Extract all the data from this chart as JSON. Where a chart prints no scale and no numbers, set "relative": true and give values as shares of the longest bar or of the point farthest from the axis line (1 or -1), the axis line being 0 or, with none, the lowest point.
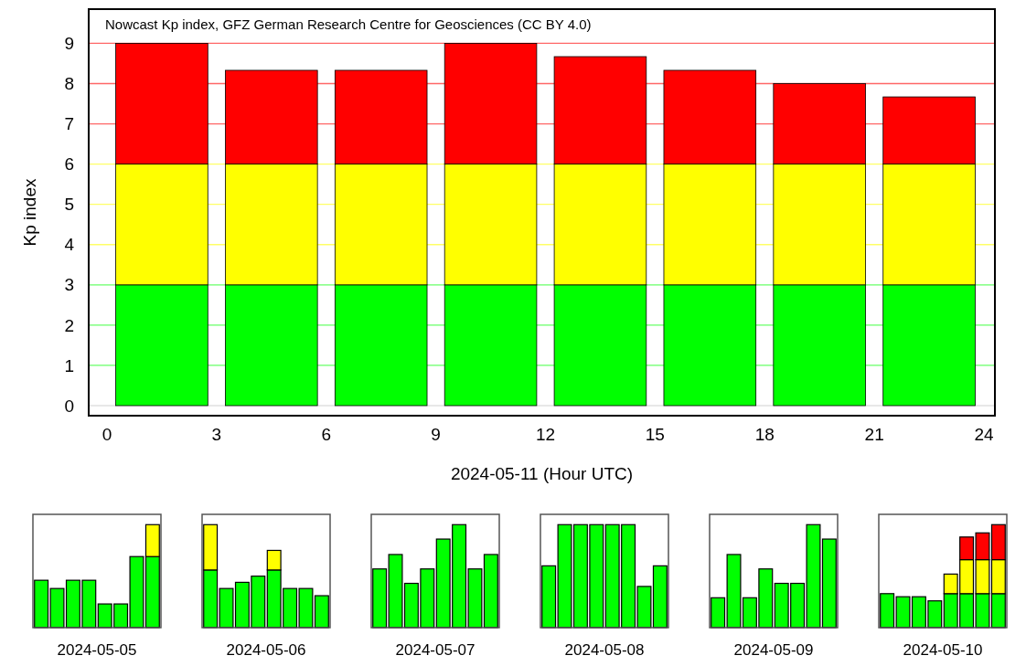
{
  "chart_data": [
    {
      "type": "bar",
      "stacked": true,
      "annotations": [
        "Nowcast Kp index, GFZ German Research Centre for Geosciences (CC BY 4.0)"
      ],
      "xlabel": "2024-05-11 (Hour UTC)",
      "ylabel": "Kp index",
      "x": [
        1.5,
        4.5,
        7.5,
        10.5,
        13.5,
        16.5,
        19.5,
        22.5
      ],
      "xlim": [
        -0.5,
        24.3
      ],
      "xticks": [
        0,
        3,
        6,
        9,
        12,
        15,
        18,
        21,
        24
      ],
      "ylim": [
        -0.25,
        9.85
      ],
      "yticks": [
        0,
        1,
        2,
        3,
        4,
        5,
        6,
        7,
        8,
        9
      ],
      "grid": "y",
      "series": [
        {
          "color": "#00ff00",
          "values": [
            3,
            3,
            3,
            3,
            3,
            3,
            3,
            3
          ]
        },
        {
          "color": "#ffff00",
          "values": [
            3,
            3,
            3,
            3,
            3,
            3,
            3,
            3
          ]
        },
        {
          "color": "#ff0000",
          "values": [
            3,
            2.33,
            2.33,
            3,
            2.67,
            2.33,
            2,
            1.67
          ]
        }
      ]
    },
    {
      "type": "bar",
      "stacked": true,
      "relative": true,
      "xlabel": "2024-05-05",
      "categories": [
        null,
        null,
        null,
        null,
        null,
        null,
        null,
        null
      ],
      "series": [
        {
          "color": "#00ff00",
          "values": [
            0.46,
            0.38,
            0.46,
            0.46,
            0.23,
            0.23,
            0.69,
            0.69
          ]
        },
        {
          "color": "#ffff00",
          "values": [
            null,
            null,
            null,
            null,
            null,
            null,
            null,
            0.31
          ]
        }
      ]
    },
    {
      "type": "bar",
      "stacked": true,
      "relative": true,
      "xlabel": "2024-05-06",
      "categories": [
        null,
        null,
        null,
        null,
        null,
        null,
        null,
        null
      ],
      "series": [
        {
          "color": "#00ff00",
          "values": [
            0.56,
            0.38,
            0.44,
            0.5,
            0.56,
            0.38,
            0.38,
            0.31
          ]
        },
        {
          "color": "#ffff00",
          "values": [
            0.44,
            null,
            null,
            null,
            0.19,
            null,
            null,
            null
          ]
        }
      ]
    },
    {
      "type": "bar",
      "stacked": true,
      "relative": true,
      "xlabel": "2024-05-07",
      "categories": [
        null,
        null,
        null,
        null,
        null,
        null,
        null,
        null
      ],
      "series": [
        {
          "color": "#00ff00",
          "values": [
            0.57,
            0.71,
            0.43,
            0.57,
            0.86,
            1,
            0.57,
            0.71
          ]
        }
      ]
    },
    {
      "type": "bar",
      "stacked": true,
      "relative": true,
      "xlabel": "2024-05-08",
      "categories": [
        null,
        null,
        null,
        null,
        null,
        null,
        null,
        null
      ],
      "series": [
        {
          "color": "#00ff00",
          "values": [
            0.6,
            1,
            1,
            1,
            1,
            1,
            0.4,
            0.6
          ]
        }
      ]
    },
    {
      "type": "bar",
      "stacked": true,
      "relative": true,
      "xlabel": "2024-05-09",
      "categories": [
        null,
        null,
        null,
        null,
        null,
        null,
        null,
        null
      ],
      "series": [
        {
          "color": "#00ff00",
          "values": [
            0.29,
            0.71,
            0.29,
            0.57,
            0.43,
            0.43,
            1,
            0.86
          ]
        }
      ]
    },
    {
      "type": "bar",
      "stacked": true,
      "relative": true,
      "xlabel": "2024-05-10",
      "categories": [
        null,
        null,
        null,
        null,
        null,
        null,
        null,
        null
      ],
      "series": [
        {
          "color": "#00ff00",
          "values": [
            0.33,
            0.3,
            0.3,
            0.26,
            0.33,
            0.33,
            0.33,
            0.33
          ]
        },
        {
          "color": "#ffff00",
          "values": [
            null,
            null,
            null,
            null,
            0.19,
            0.33,
            0.33,
            0.33
          ]
        },
        {
          "color": "#ff0000",
          "values": [
            null,
            null,
            null,
            null,
            null,
            0.22,
            0.26,
            0.34
          ]
        }
      ]
    }
  ]
}
